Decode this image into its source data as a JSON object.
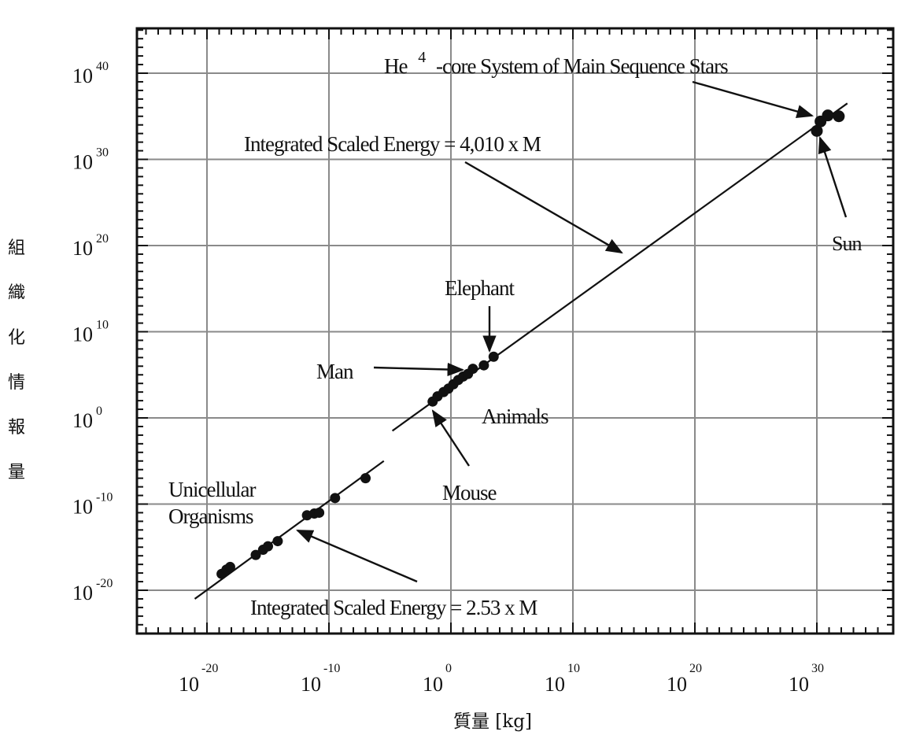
{
  "chart_data": {
    "type": "scatter",
    "title": "",
    "xlabel": "質量 [kg]",
    "ylabel": "組織化情報量",
    "x_scale": "log",
    "y_scale": "log",
    "xlim_exponent": [
      -25,
      35
    ],
    "ylim_exponent": [
      -25,
      45
    ],
    "grid": true,
    "x_ticks": [
      {
        "base": "10",
        "exp": "-20",
        "value": -20
      },
      {
        "base": "10",
        "exp": "-10",
        "value": -10
      },
      {
        "base": "10",
        "exp": "0",
        "value": 0
      },
      {
        "base": "10",
        "exp": "10",
        "value": 10
      },
      {
        "base": "10",
        "exp": "20",
        "value": 20
      },
      {
        "base": "10",
        "exp": "30",
        "value": 30
      }
    ],
    "y_ticks": [
      {
        "base": "10",
        "exp": "-20",
        "value": -20
      },
      {
        "base": "10",
        "exp": "-10",
        "value": -10
      },
      {
        "base": "10",
        "exp": "0",
        "value": 0
      },
      {
        "base": "10",
        "exp": "10",
        "value": 10
      },
      {
        "base": "10",
        "exp": "20",
        "value": 20
      },
      {
        "base": "10",
        "exp": "30",
        "value": 30
      },
      {
        "base": "10",
        "exp": "40",
        "value": 40
      }
    ],
    "fit_lines": [
      {
        "label": "Integrated Scaled Energy = 2.53 x M",
        "x": [
          -21,
          -5.5
        ],
        "y": [
          -21,
          -5
        ]
      },
      {
        "label": "Integrated Scaled Energy = 4,010 x M",
        "x": [
          -4.8,
          32.5
        ],
        "y": [
          -1.5,
          36.5
        ]
      }
    ],
    "points_log10": [
      {
        "group": "Unicellular Organisms",
        "x": -18.8,
        "y": -18.1
      },
      {
        "group": "Unicellular Organisms",
        "x": -18.4,
        "y": -17.6
      },
      {
        "group": "Unicellular Organisms",
        "x": -18.1,
        "y": -17.3
      },
      {
        "group": "Unicellular Organisms",
        "x": -16.0,
        "y": -15.9
      },
      {
        "group": "Unicellular Organisms",
        "x": -15.4,
        "y": -15.3
      },
      {
        "group": "Unicellular Organisms",
        "x": -15.0,
        "y": -14.9
      },
      {
        "group": "Unicellular Organisms",
        "x": -14.2,
        "y": -14.3
      },
      {
        "group": "Unicellular Organisms",
        "x": -11.8,
        "y": -11.3
      },
      {
        "group": "Unicellular Organisms",
        "x": -11.2,
        "y": -11.1
      },
      {
        "group": "Unicellular Organisms",
        "x": -10.8,
        "y": -11.0
      },
      {
        "group": "Unicellular Organisms",
        "x": -9.5,
        "y": -9.3
      },
      {
        "group": "Unicellular Organisms",
        "x": -7.0,
        "y": -7.0
      },
      {
        "group": "Animals",
        "x": -1.5,
        "y": 1.9
      },
      {
        "group": "Animals",
        "x": -1.1,
        "y": 2.5
      },
      {
        "group": "Animals",
        "x": -0.6,
        "y": 3.0
      },
      {
        "group": "Animals",
        "x": -0.2,
        "y": 3.4
      },
      {
        "group": "Animals",
        "x": 0.2,
        "y": 3.9
      },
      {
        "group": "Animals",
        "x": 0.6,
        "y": 4.4
      },
      {
        "group": "Animals",
        "x": 1.0,
        "y": 4.8
      },
      {
        "group": "Animals",
        "x": 1.4,
        "y": 5.1
      },
      {
        "group": "Animals",
        "x": 1.8,
        "y": 5.7
      },
      {
        "group": "Animals",
        "x": 2.7,
        "y": 6.1
      },
      {
        "group": "Animals",
        "x": 3.5,
        "y": 7.1
      },
      {
        "group": "Stars",
        "x": 30.0,
        "y": 33.3
      },
      {
        "group": "Stars",
        "x": 30.3,
        "y": 34.4
      },
      {
        "group": "Stars",
        "x": 30.9,
        "y": 35.1
      },
      {
        "group": "Stars",
        "x": 31.8,
        "y": 35.0
      }
    ],
    "annotations": [
      {
        "text": "He",
        "sup": "4",
        "rest": "-core System of Main Sequence Stars"
      },
      {
        "text": "Integrated Scaled Energy = 4,010 x M"
      },
      {
        "text": "Sun"
      },
      {
        "text": "Elephant"
      },
      {
        "text": "Man"
      },
      {
        "text": "Animals"
      },
      {
        "text": "Mouse"
      },
      {
        "text": "Unicellular"
      },
      {
        "text": "Organisms"
      },
      {
        "text": "Integrated Scaled Energy = 2.53 x M"
      }
    ]
  }
}
